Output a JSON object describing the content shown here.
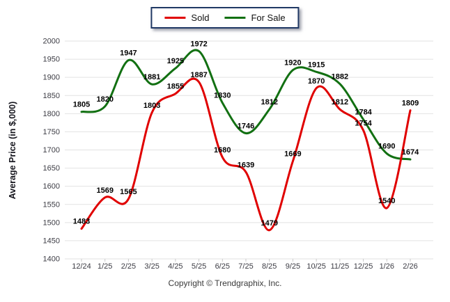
{
  "legend": {
    "items": [
      {
        "label": "Sold"
      },
      {
        "label": "For Sale"
      }
    ]
  },
  "chart_data": {
    "type": "line",
    "title": "",
    "xlabel": "",
    "ylabel": "Average Price (in $,000)",
    "categories": [
      "12/24",
      "1/25",
      "2/25",
      "3/25",
      "4/25",
      "5/25",
      "6/25",
      "7/25",
      "8/25",
      "9/25",
      "10/25",
      "11/25",
      "12/25",
      "1/26",
      "2/26"
    ],
    "series": [
      {
        "name": "For Sale",
        "color": "#127012",
        "values": [
          1805,
          1820,
          1947,
          1881,
          1925,
          1972,
          1830,
          1746,
          1812,
          1920,
          1915,
          1882,
          1784,
          1690,
          1674
        ]
      },
      {
        "name": "Sold",
        "color": "#e00000",
        "values": [
          1483,
          1569,
          1565,
          1803,
          1855,
          1887,
          1680,
          1639,
          1479,
          1669,
          1870,
          1812,
          1754,
          1540,
          1809
        ]
      }
    ],
    "ylim": [
      1400,
      2000
    ],
    "ytick_step": 50,
    "grid": true,
    "legend_position": "top-center",
    "colors": {
      "sold": "#e00000",
      "for_sale": "#127012",
      "gridline": "#e2e2e2",
      "axis_text": "#3c3c44",
      "data_label": "#000000",
      "legend_border": "#1f3864"
    }
  },
  "footer": {
    "copyright": "Copyright © Trendgraphix, Inc."
  }
}
